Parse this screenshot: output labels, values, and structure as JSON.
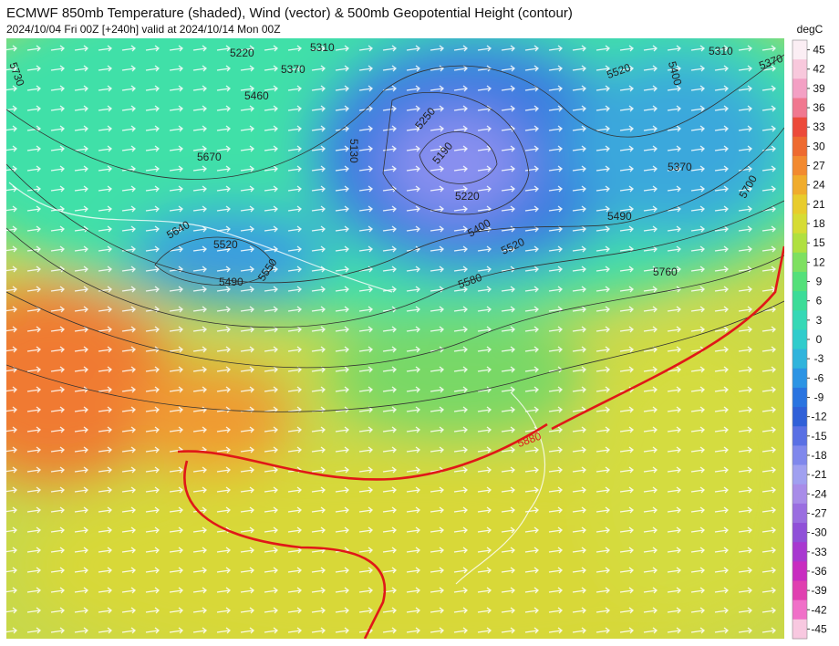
{
  "header": {
    "title": "ECMWF 850mb Temperature (shaded), Wind (vector) & 500mb Geopotential Height (contour)",
    "subtitle": "2024/10/04 Fri 00Z [+240h] valid at 2024/10/14 Mon 00Z"
  },
  "colorbar": {
    "unit": "degC",
    "ticks": [
      45,
      42,
      39,
      36,
      33,
      30,
      27,
      24,
      21,
      18,
      15,
      12,
      9,
      6,
      3,
      0,
      -3,
      -6,
      -9,
      -12,
      -15,
      -18,
      -21,
      -24,
      -27,
      -30,
      -33,
      -36,
      -39,
      -42,
      -45
    ],
    "colors": [
      "#fbeef4",
      "#f8c8dc",
      "#f3a0c4",
      "#f07890",
      "#ec4a3a",
      "#ee6a30",
      "#f28a30",
      "#f0ac2c",
      "#e8cc2c",
      "#d6dc34",
      "#b0e040",
      "#7ee060",
      "#54e07a",
      "#3cdc98",
      "#36d8b6",
      "#30cccc",
      "#30b4dc",
      "#2c94e4",
      "#2a74e0",
      "#3060d8",
      "#5a70e4",
      "#8088ec",
      "#a0a0f0",
      "#a88ce8",
      "#9a6ee0",
      "#9050d8",
      "#a838d0",
      "#c82cc0",
      "#e040b0",
      "#f070c8",
      "#f8c8e0"
    ]
  },
  "map": {
    "contour_labels": [
      "5310",
      "5220",
      "5370",
      "5460",
      "5670",
      "5640",
      "5520",
      "5490",
      "5550",
      "5130",
      "5250",
      "5190",
      "5220",
      "5400",
      "5520",
      "5580",
      "5520",
      "5400",
      "5310",
      "5370",
      "5370",
      "5700",
      "5490",
      "5760",
      "5730",
      "5880"
    ]
  }
}
